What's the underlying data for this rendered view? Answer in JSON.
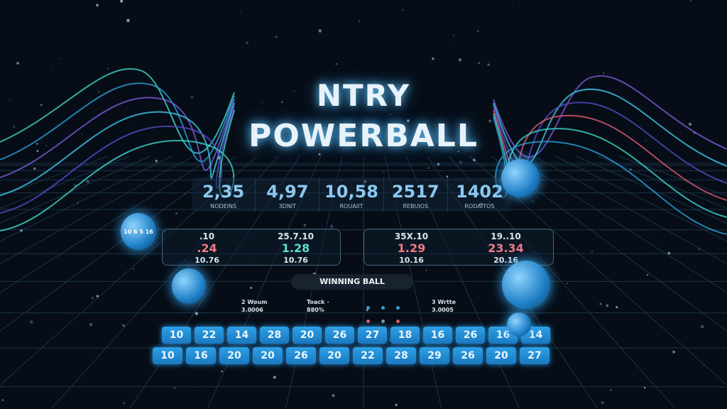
{
  "title": {
    "line1": "NTRY",
    "line2": "POWERBALL"
  },
  "stats": [
    {
      "value": "2,35",
      "label": "NODEINS"
    },
    {
      "value": "4,97",
      "label": "3DNIT"
    },
    {
      "value": "10,58",
      "label": "ROUAIIT"
    },
    {
      "value": "2517",
      "label": "REBUIOS"
    },
    {
      "value": "1402",
      "label": "RODAITOS"
    }
  ],
  "left_panel": [
    {
      "top": ".10",
      "mid": ".24",
      "bottom": "10.76",
      "mid_color": "red"
    },
    {
      "top": "25.7.10",
      "mid": "1.28",
      "bottom": "10.76",
      "mid_color": "green"
    }
  ],
  "right_panel": [
    {
      "top": "35X.10",
      "mid": "1.29",
      "bottom": "10.16",
      "mid_color": "red"
    },
    {
      "top": "19..10",
      "mid": "23.34",
      "bottom": "20.16",
      "mid_color": "red"
    }
  ],
  "winning_label": "WINNING BALL",
  "info": [
    {
      "line1": "2 Woum",
      "line2": "3.0006"
    },
    {
      "line1": "Toack",
      "line2": "880%"
    },
    {
      "line1": "3 Wrtte",
      "line2": "3.0005"
    }
  ],
  "numbers_row1": [
    "10",
    "22",
    "14",
    "28",
    "20",
    "26",
    "27",
    "18",
    "16",
    "26",
    "16",
    "14"
  ],
  "numbers_row2": [
    "10",
    "16",
    "20",
    "20",
    "26",
    "20",
    "22",
    "28",
    "29",
    "26",
    "20",
    "27"
  ],
  "ball_text": "10 6 5 16",
  "colors": {
    "accent": "#2ea0e6",
    "red": "#f07a88",
    "green": "#5fe0c8",
    "background": "#060d16"
  }
}
